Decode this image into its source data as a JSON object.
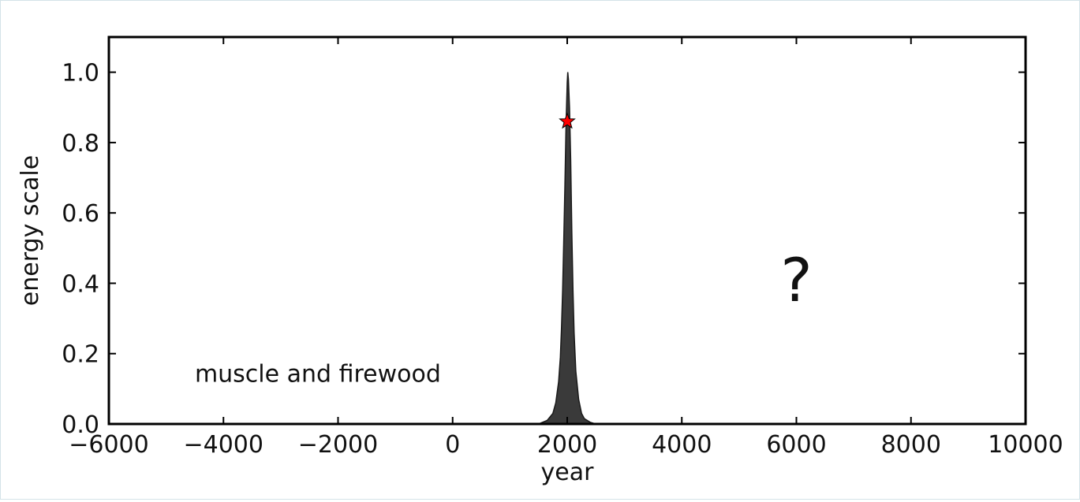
{
  "chart_data": {
    "type": "area",
    "title": "",
    "xlabel": "year",
    "ylabel": "energy scale",
    "xlim": [
      -6000,
      10000
    ],
    "ylim": [
      0,
      1.1
    ],
    "xticks": [
      -6000,
      -4000,
      -2000,
      0,
      2000,
      4000,
      6000,
      8000,
      10000
    ],
    "xtick_labels": [
      "−6000",
      "−4000",
      "−2000",
      "0",
      "2000",
      "4000",
      "6000",
      "8000",
      "10000"
    ],
    "yticks": [
      0.0,
      0.2,
      0.4,
      0.6,
      0.8,
      1.0
    ],
    "ytick_labels": [
      "0.0",
      "0.2",
      "0.4",
      "0.6",
      "0.8",
      "1.0"
    ],
    "grid": false,
    "series": [
      {
        "x": [
          1500,
          1650,
          1750,
          1800,
          1850,
          1880,
          1900,
          1920,
          1940,
          1960,
          1980,
          2000,
          2010,
          2020,
          2040,
          2060,
          2080,
          2100,
          2120,
          2150,
          2200,
          2250,
          2300,
          2400,
          2500
        ],
        "y": [
          0.0,
          0.01,
          0.03,
          0.06,
          0.12,
          0.19,
          0.27,
          0.38,
          0.52,
          0.68,
          0.85,
          0.97,
          1.0,
          0.98,
          0.9,
          0.75,
          0.55,
          0.38,
          0.26,
          0.15,
          0.07,
          0.03,
          0.015,
          0.005,
          0.0
        ],
        "color": "#3a3a3a"
      }
    ],
    "marker": {
      "x": 2000,
      "y": 0.86,
      "shape": "star",
      "color": "#ff0000"
    },
    "annotations": [
      {
        "text": "muscle and firewood",
        "x": -4500,
        "y": 0.12
      },
      {
        "text": "?",
        "x": 6000,
        "y": 0.35
      }
    ]
  }
}
